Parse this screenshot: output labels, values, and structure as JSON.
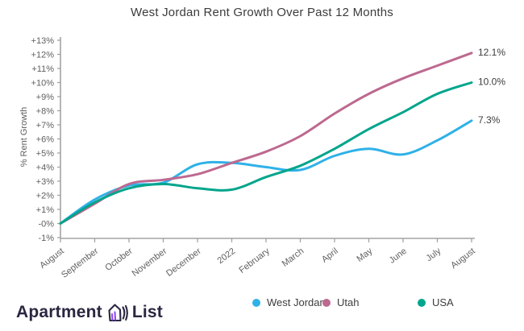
{
  "title": "West Jordan Rent Growth Over Past 12 Months",
  "chart_data": {
    "type": "line",
    "title": "West Jordan Rent Growth Over Past 12 Months",
    "xlabel": "",
    "ylabel": "% Rent Growth",
    "ylim": [
      -1,
      13
    ],
    "grid": false,
    "legend_position": "bottom",
    "categories": [
      "August",
      "September",
      "October",
      "November",
      "December",
      "2022",
      "February",
      "March",
      "April",
      "May",
      "June",
      "July",
      "August"
    ],
    "ytick_values": [
      13,
      12,
      11,
      10,
      9,
      8,
      7,
      6,
      5,
      4,
      3,
      2,
      1,
      0,
      -1
    ],
    "ytick_labels": [
      "+13%",
      "+12%",
      "+11%",
      "+10%",
      "+9%",
      "+8%",
      "+7%",
      "+6%",
      "+5%",
      "+4%",
      "+3%",
      "+2%",
      "+1%",
      "-0%",
      "-1%"
    ],
    "series": [
      {
        "name": "West Jordan",
        "color": "#2fb1e8",
        "end_label": "7.3%",
        "values": [
          0,
          1.7,
          2.7,
          2.9,
          4.2,
          4.3,
          4.0,
          3.8,
          4.8,
          5.3,
          4.9,
          5.9,
          7.3
        ]
      },
      {
        "name": "Utah",
        "color": "#bd6990",
        "end_label": "12.1%",
        "values": [
          0,
          1.4,
          2.8,
          3.1,
          3.5,
          4.3,
          5.1,
          6.2,
          7.8,
          9.2,
          10.3,
          11.2,
          12.1
        ]
      },
      {
        "name": "USA",
        "color": "#00a58c",
        "end_label": "10.0%",
        "values": [
          0,
          1.5,
          2.5,
          2.8,
          2.5,
          2.4,
          3.3,
          4.1,
          5.3,
          6.7,
          7.9,
          9.2,
          10.0
        ]
      }
    ]
  },
  "colors": {
    "axis": "#a3a3a3",
    "tick_text": "#5f5f5f",
    "end_label_text": "#3c3c3c",
    "brand_dark": "#2b2640",
    "brand_purple": "#8b44f7"
  },
  "footer": {
    "brand_word_1": "Apartment",
    "brand_word_2": "List"
  }
}
